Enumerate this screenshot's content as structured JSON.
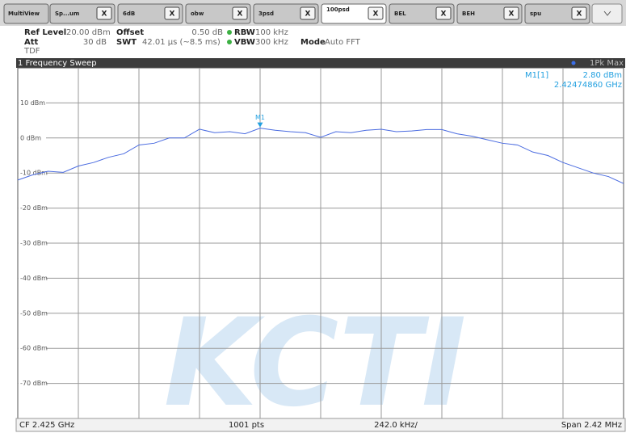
{
  "tabs": {
    "multiview": "MultiView",
    "items": [
      "Sp...um",
      "6dB",
      "obw",
      "3psd",
      "100psd",
      "BEL",
      "BEH",
      "spu"
    ],
    "close": "X",
    "active": 4
  },
  "header": {
    "ref_level_label": "Ref Level",
    "ref_level": "20.00 dBm",
    "offset_label": "Offset",
    "offset": "0.50 dB",
    "rbw_label": "RBW",
    "rbw": "100 kHz",
    "att_label": "Att",
    "att": "30 dB",
    "swt_label": "SWT",
    "swt": "42.01 µs (~8.5 ms)",
    "vbw_label": "VBW",
    "vbw": "300 kHz",
    "mode_label": "Mode",
    "mode": "Auto FFT",
    "tdf": "TDF"
  },
  "window_title": "1 Frequency Sweep",
  "chart_data": {
    "type": "line",
    "series": [
      {
        "name": "1Pk Max",
        "color": "#4a6be0",
        "values": [
          -12,
          -10.5,
          -9.5,
          -9.8,
          -8,
          -7,
          -5.5,
          -4.5,
          -2,
          -1.5,
          0,
          0,
          2.5,
          1.5,
          1.8,
          1.2,
          2.8,
          2.2,
          1.8,
          1.5,
          0.2,
          1.8,
          1.5,
          2.2,
          2.5,
          1.8,
          2,
          2.4,
          2.4,
          1.2,
          0.5,
          -0.5,
          -1.5,
          -2,
          -4,
          -5,
          -7,
          -8.5,
          -10,
          -11,
          -13
        ]
      }
    ],
    "ylim": [
      -80,
      20
    ],
    "yticks": [
      {
        "value": 10,
        "label": "10 dBm"
      },
      {
        "value": 0,
        "label": "0 dBm"
      },
      {
        "value": -10,
        "label": "-10 dBm"
      },
      {
        "value": -20,
        "label": "-20 dBm"
      },
      {
        "value": -30,
        "label": "-30 dBm"
      },
      {
        "value": -40,
        "label": "-40 dBm"
      },
      {
        "value": -50,
        "label": "-50 dBm"
      },
      {
        "value": -60,
        "label": "-60 dBm"
      },
      {
        "value": -70,
        "label": "-70 dBm"
      }
    ],
    "grid": true,
    "marker": {
      "label": "M1",
      "readout_label": "M1[1]",
      "value": 2.8,
      "value_label": "2.80 dBm",
      "frequency": "2.42474860 GHz"
    }
  },
  "footer": {
    "center_frequency": "CF 2.425 GHz",
    "points": "1001 pts",
    "per_division": "242.0 kHz/",
    "span": "Span 2.42 MHz"
  },
  "watermark": "KCTI"
}
